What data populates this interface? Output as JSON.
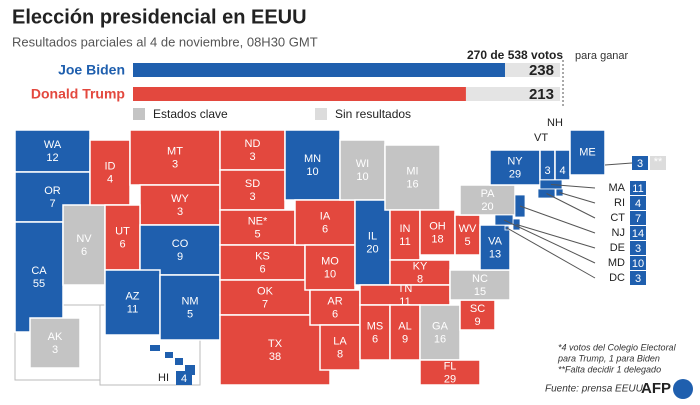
{
  "title": "Elección presidencial en EEUU",
  "subtitle": "Resultados parciales al 4 de noviembre, 08H30 GMT",
  "threshold": {
    "label": "270 de 538 votos",
    "suffix": "para ganar",
    "value": 270
  },
  "candidates": [
    {
      "name": "Joe Biden",
      "party": "D",
      "votes": 238
    },
    {
      "name": "Donald Trump",
      "party": "R",
      "votes": 213
    }
  ],
  "colors": {
    "D": "#1f5fae",
    "R": "#e3483e",
    "key": "#c4c4c4",
    "none": "#dcdcdc",
    "remainder": "#e4e4e4"
  },
  "legend": [
    {
      "label": "Estados clave",
      "status": "key"
    },
    {
      "label": "Sin resultados",
      "status": "none"
    }
  ],
  "states": [
    {
      "code": "WA",
      "votes": 12,
      "winner": "D"
    },
    {
      "code": "OR",
      "votes": 7,
      "winner": "D"
    },
    {
      "code": "CA",
      "votes": 55,
      "winner": "D"
    },
    {
      "code": "NV",
      "votes": 6,
      "winner": "key"
    },
    {
      "code": "ID",
      "votes": 4,
      "winner": "R"
    },
    {
      "code": "MT",
      "votes": 3,
      "winner": "R"
    },
    {
      "code": "WY",
      "votes": 3,
      "winner": "R"
    },
    {
      "code": "UT",
      "votes": 6,
      "winner": "R"
    },
    {
      "code": "CO",
      "votes": 9,
      "winner": "D"
    },
    {
      "code": "AZ",
      "votes": 11,
      "winner": "D"
    },
    {
      "code": "NM",
      "votes": 5,
      "winner": "D"
    },
    {
      "code": "ND",
      "votes": 3,
      "winner": "R"
    },
    {
      "code": "SD",
      "votes": 3,
      "winner": "R"
    },
    {
      "code": "NE*",
      "votes": 5,
      "winner": "R"
    },
    {
      "code": "KS",
      "votes": 6,
      "winner": "R"
    },
    {
      "code": "OK",
      "votes": 7,
      "winner": "R"
    },
    {
      "code": "TX",
      "votes": 38,
      "winner": "R"
    },
    {
      "code": "MN",
      "votes": 10,
      "winner": "D"
    },
    {
      "code": "IA",
      "votes": 6,
      "winner": "R"
    },
    {
      "code": "MO",
      "votes": 10,
      "winner": "R"
    },
    {
      "code": "AR",
      "votes": 6,
      "winner": "R"
    },
    {
      "code": "LA",
      "votes": 8,
      "winner": "R"
    },
    {
      "code": "WI",
      "votes": 10,
      "winner": "key"
    },
    {
      "code": "IL",
      "votes": 20,
      "winner": "D"
    },
    {
      "code": "MI",
      "votes": 16,
      "winner": "key"
    },
    {
      "code": "IN",
      "votes": 11,
      "winner": "R"
    },
    {
      "code": "OH",
      "votes": 18,
      "winner": "R"
    },
    {
      "code": "KY",
      "votes": 8,
      "winner": "R"
    },
    {
      "code": "TN",
      "votes": 11,
      "winner": "R"
    },
    {
      "code": "MS",
      "votes": 6,
      "winner": "R"
    },
    {
      "code": "AL",
      "votes": 9,
      "winner": "R"
    },
    {
      "code": "GA",
      "votes": 16,
      "winner": "key"
    },
    {
      "code": "FL",
      "votes": 29,
      "winner": "R"
    },
    {
      "code": "SC",
      "votes": 9,
      "winner": "R"
    },
    {
      "code": "NC",
      "votes": 15,
      "winner": "key"
    },
    {
      "code": "WV",
      "votes": 5,
      "winner": "R"
    },
    {
      "code": "VA",
      "votes": 13,
      "winner": "D"
    },
    {
      "code": "PA",
      "votes": 20,
      "winner": "key"
    },
    {
      "code": "NY",
      "votes": 29,
      "winner": "D"
    },
    {
      "code": "VT",
      "votes": 3,
      "winner": "D"
    },
    {
      "code": "NH",
      "votes": 4,
      "winner": "D"
    },
    {
      "code": "ME",
      "votes": 3,
      "winner": "D",
      "note": "**"
    },
    {
      "code": "MA",
      "votes": 11,
      "winner": "D"
    },
    {
      "code": "RI",
      "votes": 4,
      "winner": "D"
    },
    {
      "code": "CT",
      "votes": 7,
      "winner": "D"
    },
    {
      "code": "NJ",
      "votes": 14,
      "winner": "D"
    },
    {
      "code": "DE",
      "votes": 3,
      "winner": "D"
    },
    {
      "code": "MD",
      "votes": 10,
      "winner": "D"
    },
    {
      "code": "DC",
      "votes": 3,
      "winner": "D"
    },
    {
      "code": "AK",
      "votes": 3,
      "winner": "key"
    },
    {
      "code": "HI",
      "votes": 4,
      "winner": "D"
    }
  ],
  "notes": [
    "*4 votos del Colegio Electoral",
    "para Trump, 1 para Biden",
    "**Falta decidir 1 delegado"
  ],
  "source": "Fuente: prensa EEUU",
  "logo": "AFP"
}
